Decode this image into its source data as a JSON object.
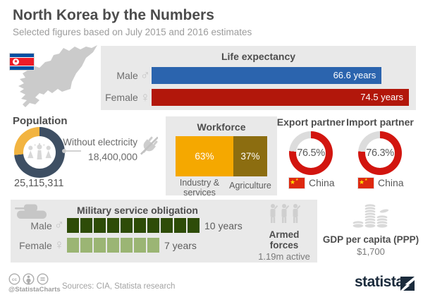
{
  "header": {
    "title": "North Korea by the Numbers",
    "subtitle": "Selected figures based on July 2015 and 2016 estimates"
  },
  "icons": {
    "male": "♂",
    "female": "♀",
    "star": "★"
  },
  "colors": {
    "trade_red": "#d2150f",
    "trade_track": "#dcdcdc",
    "panel": "#e9e9e9"
  },
  "life_expectancy": {
    "title": "Life expectancy",
    "max": 74.5,
    "rows": [
      {
        "label": "Male",
        "value": 66.6,
        "value_label": "66.6 years",
        "color": "#2b64ae"
      },
      {
        "label": "Female",
        "value": 74.5,
        "value_label": "74.5 years",
        "color": "#b2170b"
      }
    ]
  },
  "population": {
    "title": "Population",
    "total_label": "25,115,311",
    "without_electricity": {
      "label": "Without electricity",
      "value_label": "18,400,000",
      "percent": 73.3
    },
    "donut_colors": {
      "main": "#3e4f63",
      "accent": "#f2b441"
    }
  },
  "workforce": {
    "title": "Workforce",
    "segments": [
      {
        "label": "Industry & services",
        "percent": 63,
        "percent_label": "63%",
        "color": "#f5a800"
      },
      {
        "label": "Agriculture",
        "percent": 37,
        "percent_label": "37%",
        "color": "#8c6d10"
      }
    ]
  },
  "trade": [
    {
      "title": "Export partner",
      "percent": 76.5,
      "percent_label": "76.5%",
      "partner": "China"
    },
    {
      "title": "Import partner",
      "percent": 76.3,
      "percent_label": "76.3%",
      "partner": "China"
    }
  ],
  "military": {
    "title": "Military service obligation",
    "rows": [
      {
        "label": "Male",
        "years": 10,
        "value_label": "10 years",
        "color": "#2e4c08"
      },
      {
        "label": "Female",
        "years": 7,
        "value_label": "7 years",
        "color": "#9bb574"
      }
    ]
  },
  "armed_forces": {
    "title": "Armed forces",
    "subtitle": "1.19m active"
  },
  "gdp": {
    "title": "GDP per capita (PPP)",
    "value": "$1,700"
  },
  "footer": {
    "handle": "@StatistaCharts",
    "sources": "Sources: CIA, Statista research",
    "brand": "statista"
  },
  "chart_data": [
    {
      "type": "bar",
      "title": "Life expectancy",
      "orientation": "horizontal",
      "categories": [
        "Male",
        "Female"
      ],
      "values": [
        66.6,
        74.5
      ],
      "unit": "years",
      "colors": [
        "#2b64ae",
        "#b2170b"
      ],
      "xlim": [
        0,
        74.5
      ],
      "data_labels": [
        "66.6 years",
        "74.5 years"
      ]
    },
    {
      "type": "pie",
      "title": "Population",
      "total": 25115311,
      "annotation": "25,115,311",
      "slices": [
        {
          "label": "Without electricity",
          "value": 18400000
        },
        {
          "label": "Remainder",
          "value": 6715311
        }
      ],
      "colors": [
        "#3e4f63",
        "#f2b441"
      ]
    },
    {
      "type": "bar",
      "title": "Workforce",
      "orientation": "horizontal-stacked",
      "categories": [
        "Industry & services",
        "Agriculture"
      ],
      "values": [
        63,
        37
      ],
      "unit": "%",
      "colors": [
        "#f5a800",
        "#8c6d10"
      ]
    },
    {
      "type": "pie",
      "title": "Export partner",
      "unit": "%",
      "slices": [
        {
          "label": "China",
          "value": 76.5
        },
        {
          "label": "Other",
          "value": 23.5
        }
      ],
      "colors": [
        "#d2150f",
        "#dcdcdc"
      ]
    },
    {
      "type": "pie",
      "title": "Import partner",
      "unit": "%",
      "slices": [
        {
          "label": "China",
          "value": 76.3
        },
        {
          "label": "Other",
          "value": 23.7
        }
      ],
      "colors": [
        "#d2150f",
        "#dcdcdc"
      ]
    },
    {
      "type": "bar",
      "title": "Military service obligation",
      "orientation": "horizontal",
      "categories": [
        "Male",
        "Female"
      ],
      "values": [
        10,
        7
      ],
      "unit": "years",
      "colors": [
        "#2e4c08",
        "#9bb574"
      ],
      "data_labels": [
        "10 years",
        "7 years"
      ]
    }
  ]
}
